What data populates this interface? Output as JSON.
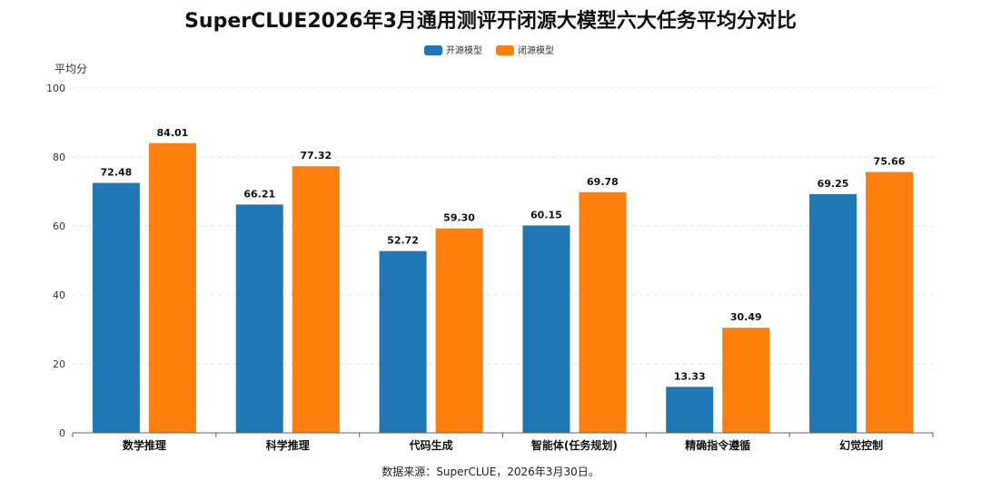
{
  "chart_data": {
    "type": "bar",
    "title": "SuperCLUE2026年3月通用测评开闭源大模型六大任务平均分对比",
    "ylabel": "平均分",
    "xlabel": "",
    "ylim": [
      0,
      100
    ],
    "yticks": [
      0,
      20,
      40,
      60,
      80,
      100
    ],
    "grid": true,
    "legend_position": "top-center",
    "categories": [
      "数学推理",
      "科学推理",
      "代码生成",
      "智能体(任务规划)",
      "精确指令遵循",
      "幻觉控制"
    ],
    "series": [
      {
        "name": "开源模型",
        "color": "#1f77b4",
        "values": [
          72.48,
          66.21,
          52.72,
          60.15,
          13.33,
          69.25
        ],
        "labels": [
          "72.48",
          "66.21",
          "52.72",
          "60.15",
          "13.33",
          "69.25"
        ]
      },
      {
        "name": "闭源模型",
        "color": "#ff7f0e",
        "values": [
          84.01,
          77.32,
          59.3,
          69.78,
          30.49,
          75.66
        ],
        "labels": [
          "84.01",
          "77.32",
          "59.30",
          "69.78",
          "30.49",
          "75.66"
        ]
      }
    ],
    "source_note": "数据来源：SuperCLUE，2026年3月30日。"
  }
}
